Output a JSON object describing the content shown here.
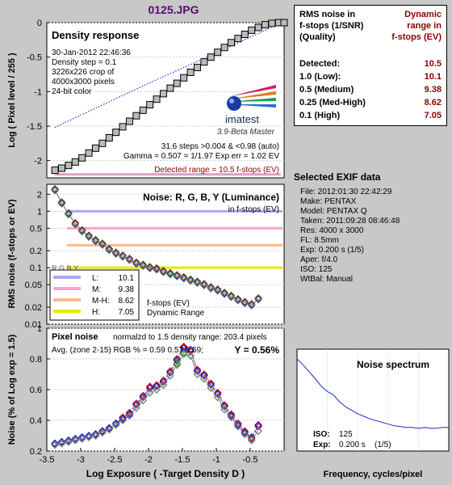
{
  "title": "0125.JPG",
  "colors": {
    "purple_title": "#5a0a6e",
    "dark_red": "#8b0000",
    "gray_bg": "#c8c8c8"
  },
  "density": {
    "heading": "Density response",
    "info": [
      "30-Jan-2012 22:46:36",
      "Density step = 0.1",
      "3226x226 crop of",
      "4000x3000 pixels",
      "24-bit color"
    ],
    "logo_text": "imatest",
    "version": "3.9-Beta  Master",
    "steps_line": "31.6 steps >0.004 & <0.98 (auto)",
    "gamma_line": "Gamma = 0.507 = 1/1.97  Exp err = 1.02 EV",
    "detected_line": "Detected range = 10.5 f-stops (EV)",
    "ylabel": "Log ( Pixel level / 255 )"
  },
  "noise": {
    "heading": "Noise: R, G, B, Y (Luminance)",
    "sub": "in f-stops (EV)",
    "ylabel": "RMS noise (f-stops or EV)",
    "legend": [
      {
        "key": "L:",
        "value": "10.1",
        "color": "#a8a8ff"
      },
      {
        "key": "M:",
        "value": "9.38",
        "color": "#ff9fd2"
      },
      {
        "key": "M-H:",
        "value": "8.62",
        "color": "#ffb88a"
      },
      {
        "key": "H:",
        "value": "7.05",
        "color": "#e8e800"
      }
    ],
    "legend_note1": "f-stops (EV)",
    "legend_note2": "Dynamic Range",
    "hidden_label": "R,G,B,Y"
  },
  "pixel_noise": {
    "heading": "Pixel noise",
    "normalized": "normalzd to 1.5 density range: 203.4 pixels",
    "avg": "Avg. (zone 2-15) RGB % = 0.59  0.57  0.59;",
    "y_value": "Y = 0.56%",
    "ylabel": "Noise (% of Log exp = 1.5)",
    "xlabel": "Log Exposure ( -Target Density D )"
  },
  "spectrum": {
    "heading": "Noise spectrum",
    "iso_label": "ISO:",
    "iso_value": "125",
    "exp_label": "Exp:",
    "exp_value": "0.200 s",
    "exp_frac": "(1/5)",
    "xlabel": "Frequency, cycles/pixel"
  },
  "rms_table": {
    "h1": [
      "RMS noise in",
      "f-stops (1/SNR)",
      "(Quality)"
    ],
    "h2": [
      "Dynamic",
      "range in",
      "f-stops (EV)"
    ],
    "rows": [
      {
        "k": "Detected:",
        "v": "10.5"
      },
      {
        "k": "1.0  (Low):",
        "v": "10.1"
      },
      {
        "k": "0.5  (Medium)",
        "v": "9.38"
      },
      {
        "k": "0.25 (Med-High)",
        "v": "8.62"
      },
      {
        "k": "0.1  (High)",
        "v": "7.05"
      }
    ]
  },
  "exif": {
    "heading": "Selected EXIF data",
    "rows": [
      "File:  2012:01:30 22:42:29",
      "Make:  PENTAX",
      "Model: PENTAX Q",
      "Taken: 2011:09:28 08:46:48",
      "Res:   4000 x 3000",
      "FL:   8.5mm",
      "Exp:  0.200 s  (1/5)",
      "Aper:  f/4.0",
      "ISO:   125",
      "WtBal: Manual"
    ]
  },
  "chart_data": [
    {
      "type": "line",
      "title": "Density response",
      "ylabel": "Log ( Pixel level / 255 )",
      "xlim": [
        -3.5,
        0
      ],
      "ylim": [
        -2.25,
        0
      ],
      "yticks": [
        0,
        -0.5,
        -1,
        -1.5,
        -2
      ],
      "series": [
        {
          "x": [
            -3.38,
            -3.28,
            -3.18,
            -3.08,
            -2.98,
            -2.88,
            -2.78,
            -2.68,
            -2.58,
            -2.48,
            -2.38,
            -2.28,
            -2.18,
            -2.08,
            -1.98,
            -1.88,
            -1.78,
            -1.68,
            -1.58,
            -1.48,
            -1.38,
            -1.28,
            -1.18,
            -1.08,
            -0.98,
            -0.88,
            -0.78,
            -0.68,
            -0.58,
            -0.48,
            -0.38,
            -0.28,
            -0.18,
            -0.08,
            0.0
          ],
          "y": [
            -2.14,
            -2.11,
            -2.07,
            -2.02,
            -1.96,
            -1.89,
            -1.82,
            -1.75,
            -1.67,
            -1.59,
            -1.51,
            -1.43,
            -1.35,
            -1.27,
            -1.19,
            -1.11,
            -1.03,
            -0.95,
            -0.88,
            -0.8,
            -0.72,
            -0.65,
            -0.57,
            -0.5,
            -0.43,
            -0.36,
            -0.29,
            -0.23,
            -0.17,
            -0.11,
            -0.07,
            -0.03,
            -0.01,
            0.0,
            0.0
          ]
        },
        {
          "x": [
            -3.38,
            -3.0,
            -2.5,
            -2.0,
            -1.5,
            -1.0,
            -0.5,
            -0.1
          ],
          "y": [
            -1.52,
            -1.34,
            -1.11,
            -0.88,
            -0.66,
            -0.44,
            -0.21,
            -0.03
          ]
        }
      ]
    },
    {
      "type": "line",
      "title": "Noise: R, G, B, Y (Luminance)",
      "ylabel": "RMS noise (f-stops or EV)",
      "xlim": [
        -3.5,
        0
      ],
      "ylim": [
        0.01,
        3
      ],
      "yticks": [
        2,
        1,
        0.5,
        0.2,
        0.1,
        0.05,
        0.02,
        0.01
      ],
      "yscale": "log",
      "hlines": [
        1.0,
        0.5,
        0.25,
        0.1
      ],
      "series": [
        {
          "x": [
            -3.38,
            -3.28,
            -3.18,
            -3.08,
            -2.98,
            -2.88,
            -2.78,
            -2.68,
            -2.58,
            -2.48,
            -2.38,
            -2.28,
            -2.18,
            -2.08,
            -1.98,
            -1.88,
            -1.78,
            -1.68,
            -1.58,
            -1.48,
            -1.38,
            -1.28,
            -1.18,
            -1.08,
            -0.98,
            -0.88,
            -0.78,
            -0.68,
            -0.58,
            -0.48,
            -0.38
          ],
          "y": [
            2.4,
            1.4,
            0.9,
            0.6,
            0.45,
            0.36,
            0.3,
            0.26,
            0.21,
            0.18,
            0.16,
            0.14,
            0.12,
            0.11,
            0.1,
            0.095,
            0.085,
            0.078,
            0.072,
            0.066,
            0.06,
            0.055,
            0.05,
            0.044,
            0.04,
            0.035,
            0.031,
            0.027,
            0.024,
            0.022,
            0.028
          ]
        }
      ]
    },
    {
      "type": "scatter",
      "title": "Pixel noise",
      "xlabel": "Log Exposure ( -Target Density D )",
      "ylabel": "Noise (% of Log exp = 1.5)",
      "xlim": [
        -3.5,
        0
      ],
      "ylim": [
        0.2,
        1.0
      ],
      "xticks": [
        -3.5,
        -3,
        -2.5,
        -2,
        -1.5,
        -1,
        -0.5
      ],
      "yticks": [
        1,
        0.8,
        0.6,
        0.4,
        0.2
      ],
      "series": [
        {
          "name": "R",
          "color": "#d00000",
          "x": [
            -3.38,
            -3.28,
            -3.18,
            -3.08,
            -2.98,
            -2.88,
            -2.78,
            -2.68,
            -2.58,
            -2.48,
            -2.38,
            -2.28,
            -2.18,
            -2.08,
            -1.98,
            -1.88,
            -1.78,
            -1.68,
            -1.58,
            -1.48,
            -1.38,
            -1.28,
            -1.18,
            -1.08,
            -0.98,
            -0.88,
            -0.78,
            -0.68,
            -0.58,
            -0.48,
            -0.38
          ],
          "y": [
            0.24,
            0.25,
            0.26,
            0.27,
            0.28,
            0.29,
            0.31,
            0.33,
            0.35,
            0.38,
            0.42,
            0.45,
            0.51,
            0.56,
            0.62,
            0.63,
            0.66,
            0.72,
            0.8,
            0.88,
            0.85,
            0.73,
            0.7,
            0.64,
            0.58,
            0.5,
            0.44,
            0.38,
            0.33,
            0.28,
            0.36
          ]
        },
        {
          "name": "G",
          "color": "#00a000",
          "x": [
            -3.38,
            -3.28,
            -3.18,
            -3.08,
            -2.98,
            -2.88,
            -2.78,
            -2.68,
            -2.58,
            -2.48,
            -2.38,
            -2.28,
            -2.18,
            -2.08,
            -1.98,
            -1.88,
            -1.78,
            -1.68,
            -1.58,
            -1.48,
            -1.38,
            -1.28,
            -1.18,
            -1.08,
            -0.98,
            -0.88,
            -0.78,
            -0.68,
            -0.58,
            -0.48,
            -0.38
          ],
          "y": [
            0.24,
            0.25,
            0.26,
            0.27,
            0.28,
            0.29,
            0.3,
            0.32,
            0.34,
            0.37,
            0.4,
            0.43,
            0.48,
            0.53,
            0.58,
            0.6,
            0.63,
            0.69,
            0.77,
            0.84,
            0.82,
            0.7,
            0.67,
            0.61,
            0.55,
            0.47,
            0.42,
            0.36,
            0.31,
            0.27,
            0.33
          ]
        },
        {
          "name": "B",
          "color": "#1010d0",
          "x": [
            -3.38,
            -3.28,
            -3.18,
            -3.08,
            -2.98,
            -2.88,
            -2.78,
            -2.68,
            -2.58,
            -2.48,
            -2.38,
            -2.28,
            -2.18,
            -2.08,
            -1.98,
            -1.88,
            -1.78,
            -1.68,
            -1.58,
            -1.48,
            -1.38,
            -1.28,
            -1.18,
            -1.08,
            -0.98,
            -0.88,
            -0.78,
            -0.68,
            -0.58,
            -0.48,
            -0.38
          ],
          "y": [
            0.25,
            0.26,
            0.27,
            0.28,
            0.29,
            0.3,
            0.31,
            0.33,
            0.35,
            0.38,
            0.41,
            0.44,
            0.5,
            0.55,
            0.61,
            0.62,
            0.65,
            0.71,
            0.79,
            0.87,
            0.86,
            0.72,
            0.69,
            0.63,
            0.57,
            0.49,
            0.43,
            0.37,
            0.32,
            0.29,
            0.37
          ]
        },
        {
          "name": "Y",
          "color": "#808080",
          "x": [
            -3.38,
            -3.28,
            -3.18,
            -3.08,
            -2.98,
            -2.88,
            -2.78,
            -2.68,
            -2.58,
            -2.48,
            -2.38,
            -2.28,
            -2.18,
            -2.08,
            -1.98,
            -1.88,
            -1.78,
            -1.68,
            -1.58,
            -1.48,
            -1.38,
            -1.28,
            -1.18,
            -1.08,
            -0.98,
            -0.88,
            -0.78,
            -0.68,
            -0.58,
            -0.48,
            -0.38
          ],
          "y": [
            0.24,
            0.25,
            0.26,
            0.27,
            0.28,
            0.29,
            0.3,
            0.32,
            0.34,
            0.37,
            0.4,
            0.43,
            0.48,
            0.53,
            0.58,
            0.6,
            0.63,
            0.69,
            0.76,
            0.83,
            0.82,
            0.7,
            0.67,
            0.61,
            0.55,
            0.47,
            0.42,
            0.36,
            0.31,
            0.27,
            0.33
          ]
        }
      ]
    },
    {
      "type": "line",
      "title": "Noise spectrum",
      "xlabel": "Frequency, cycles/pixel",
      "xlim": [
        0,
        0.5
      ],
      "series": [
        {
          "x": [
            0.0,
            0.02,
            0.04,
            0.06,
            0.08,
            0.1,
            0.12,
            0.14,
            0.16,
            0.18,
            0.2,
            0.22,
            0.24,
            0.26,
            0.28,
            0.3,
            0.32,
            0.34,
            0.36,
            0.38,
            0.4,
            0.42,
            0.44,
            0.46,
            0.48,
            0.5
          ],
          "y": [
            1.0,
            0.93,
            0.85,
            0.77,
            0.68,
            0.62,
            0.58,
            0.5,
            0.44,
            0.4,
            0.36,
            0.33,
            0.3,
            0.28,
            0.26,
            0.24,
            0.22,
            0.21,
            0.2,
            0.2,
            0.19,
            0.2,
            0.19,
            0.19,
            0.2,
            0.2
          ]
        }
      ]
    }
  ]
}
